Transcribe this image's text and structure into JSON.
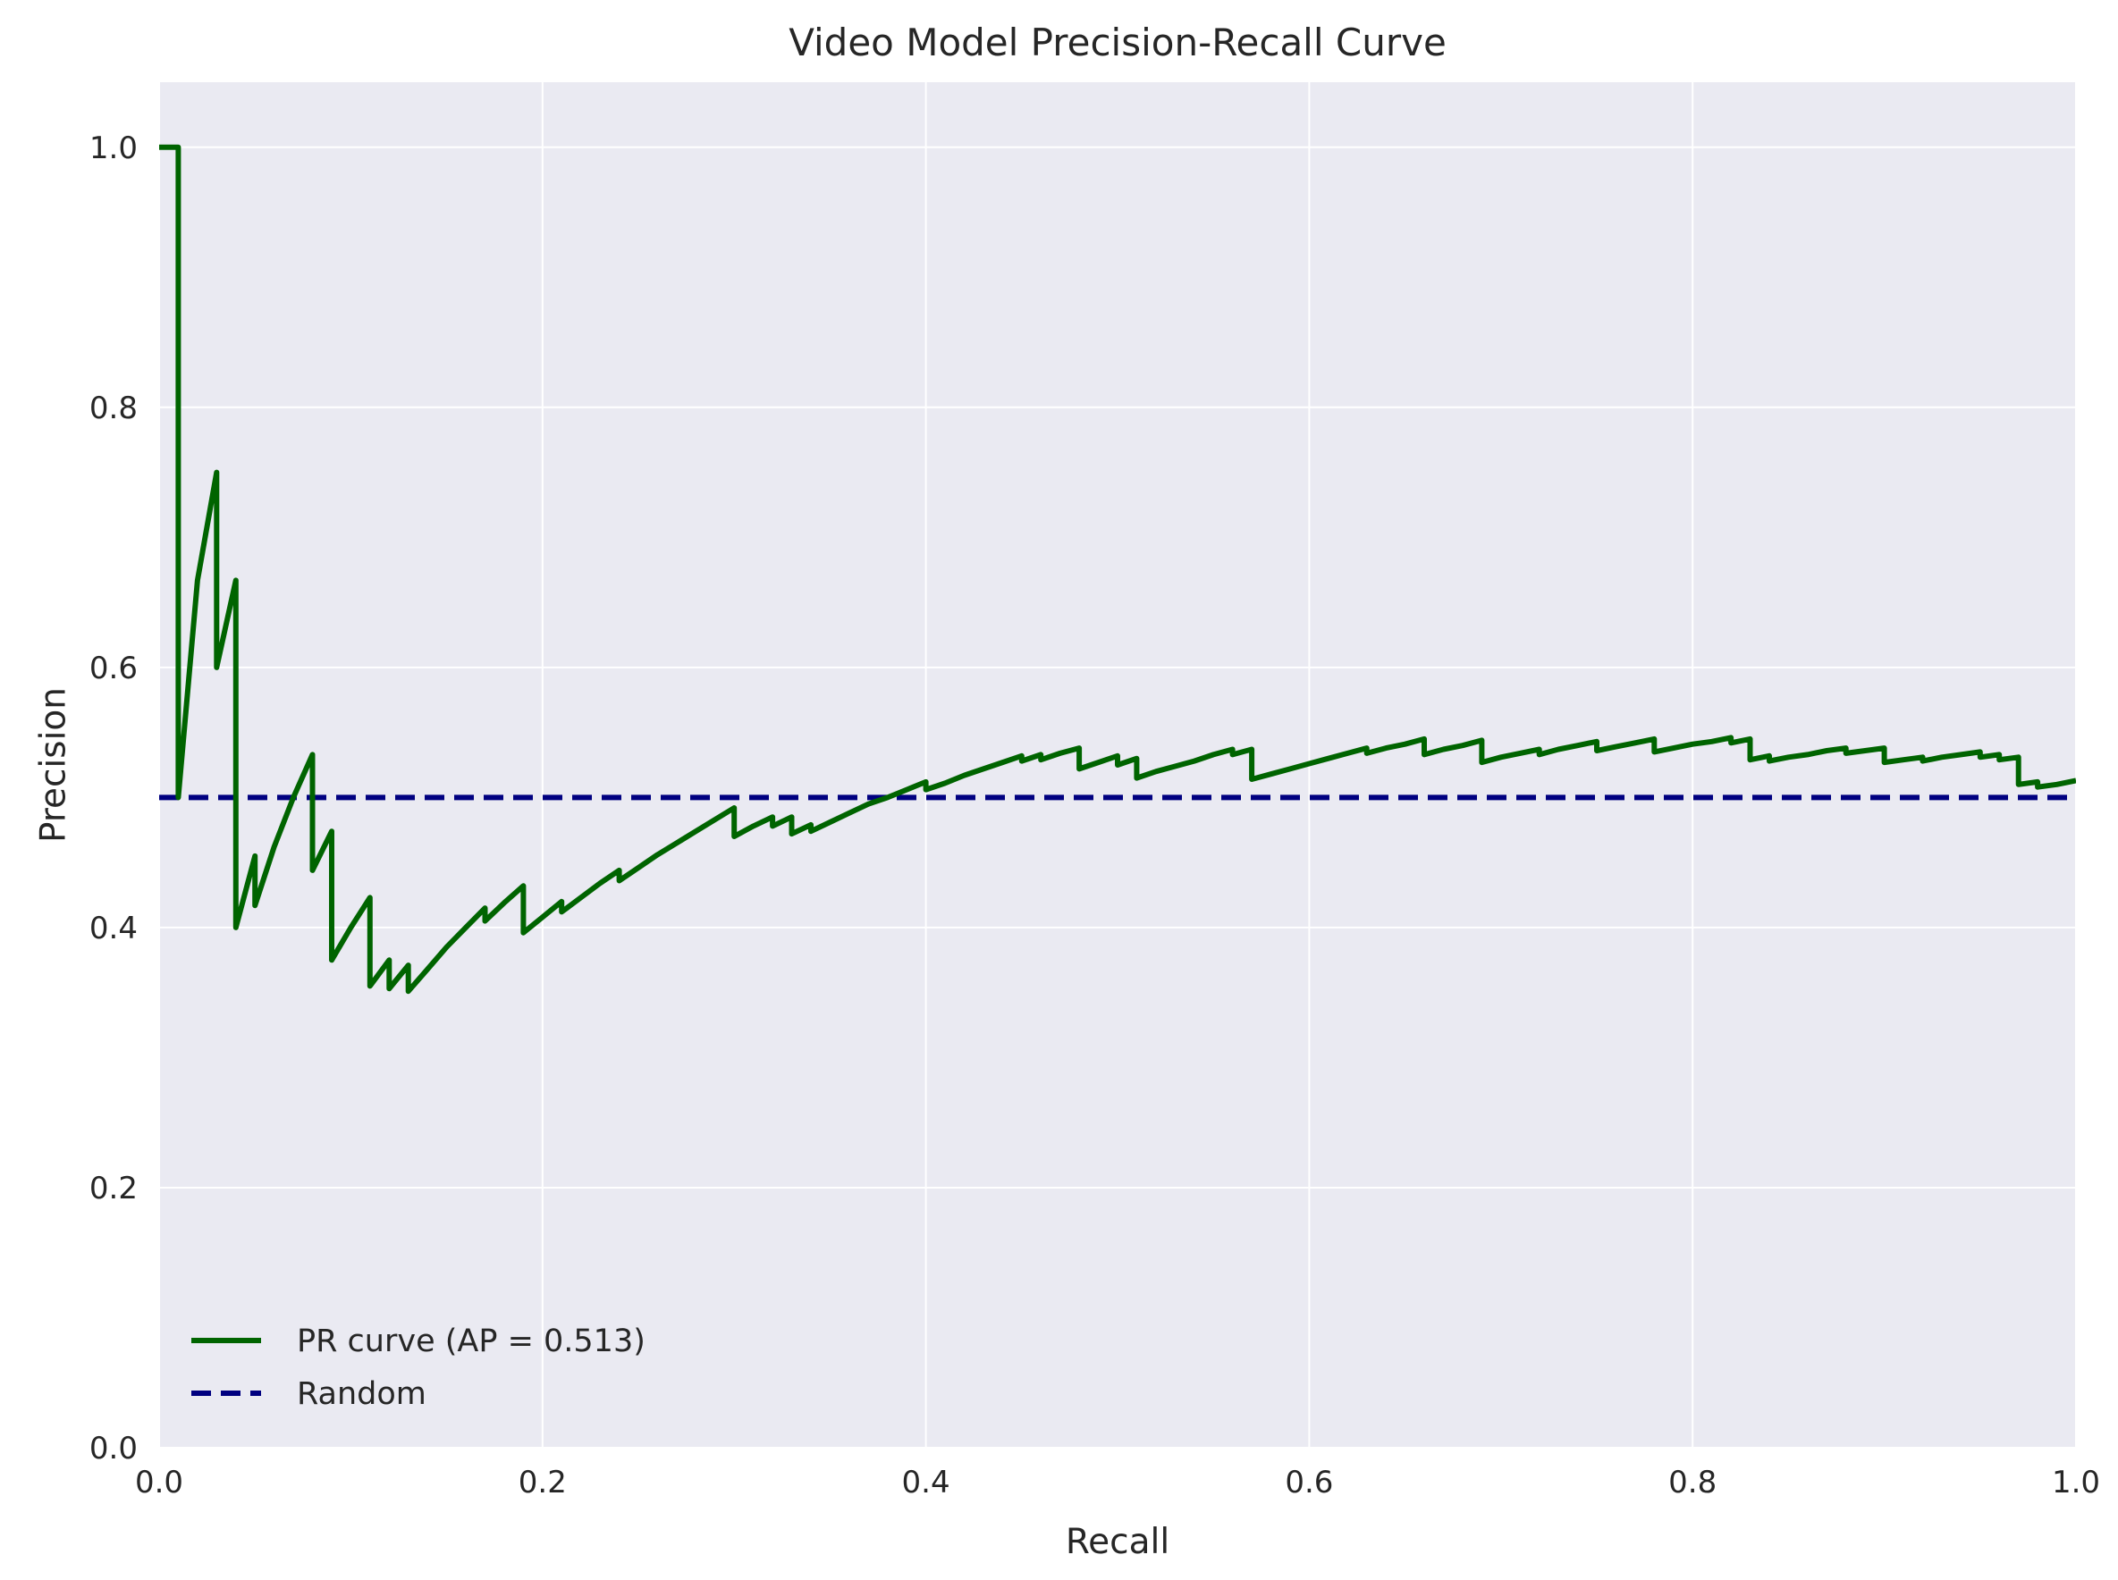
{
  "chart_data": {
    "type": "line",
    "title": "Video Model Precision-Recall Curve",
    "xlabel": "Recall",
    "ylabel": "Precision",
    "xlim": [
      0.0,
      1.0
    ],
    "ylim": [
      0.0,
      1.05
    ],
    "xticks": [
      0.0,
      0.2,
      0.4,
      0.6,
      0.8,
      1.0
    ],
    "xtick_labels": [
      "0.0",
      "0.2",
      "0.4",
      "0.6",
      "0.8",
      "1.0"
    ],
    "yticks": [
      0.0,
      0.2,
      0.4,
      0.6,
      0.8,
      1.0
    ],
    "ytick_labels": [
      "0.0",
      "0.2",
      "0.4",
      "0.6",
      "0.8",
      "1.0"
    ],
    "grid": true,
    "legend_position": "lower-left",
    "background_color": "#eaeaf2",
    "grid_color": "#ffffff",
    "series": [
      {
        "name": "PR curve (AP = 0.513)",
        "style": "solid",
        "color": "#006400",
        "x": [
          0.0,
          0.01,
          0.01,
          0.02,
          0.03,
          0.03,
          0.04,
          0.04,
          0.05,
          0.05,
          0.06,
          0.07,
          0.08,
          0.08,
          0.09,
          0.09,
          0.1,
          0.11,
          0.11,
          0.12,
          0.12,
          0.13,
          0.13,
          0.14,
          0.15,
          0.16,
          0.17,
          0.17,
          0.18,
          0.19,
          0.19,
          0.2,
          0.21,
          0.21,
          0.22,
          0.23,
          0.24,
          0.24,
          0.25,
          0.26,
          0.27,
          0.28,
          0.29,
          0.3,
          0.3,
          0.31,
          0.32,
          0.32,
          0.33,
          0.33,
          0.34,
          0.34,
          0.35,
          0.36,
          0.37,
          0.38,
          0.39,
          0.4,
          0.4,
          0.41,
          0.42,
          0.43,
          0.44,
          0.45,
          0.45,
          0.46,
          0.46,
          0.47,
          0.48,
          0.48,
          0.49,
          0.5,
          0.5,
          0.51,
          0.51,
          0.52,
          0.53,
          0.54,
          0.55,
          0.56,
          0.56,
          0.57,
          0.57,
          0.58,
          0.59,
          0.6,
          0.61,
          0.62,
          0.63,
          0.63,
          0.64,
          0.65,
          0.66,
          0.66,
          0.67,
          0.68,
          0.69,
          0.69,
          0.7,
          0.71,
          0.72,
          0.72,
          0.73,
          0.74,
          0.75,
          0.75,
          0.76,
          0.77,
          0.78,
          0.78,
          0.79,
          0.8,
          0.81,
          0.82,
          0.82,
          0.83,
          0.83,
          0.84,
          0.84,
          0.85,
          0.86,
          0.87,
          0.88,
          0.88,
          0.89,
          0.9,
          0.9,
          0.91,
          0.92,
          0.92,
          0.93,
          0.94,
          0.95,
          0.95,
          0.96,
          0.96,
          0.97,
          0.97,
          0.98,
          0.98,
          0.99,
          1.0
        ],
        "y": [
          1.0,
          1.0,
          0.5,
          0.667,
          0.75,
          0.6,
          0.667,
          0.4,
          0.455,
          0.417,
          0.462,
          0.5,
          0.533,
          0.444,
          0.474,
          0.375,
          0.4,
          0.423,
          0.355,
          0.375,
          0.353,
          0.371,
          0.351,
          0.368,
          0.385,
          0.4,
          0.415,
          0.405,
          0.419,
          0.432,
          0.396,
          0.408,
          0.42,
          0.412,
          0.423,
          0.434,
          0.444,
          0.436,
          0.446,
          0.456,
          0.465,
          0.474,
          0.483,
          0.492,
          0.47,
          0.478,
          0.485,
          0.478,
          0.485,
          0.472,
          0.479,
          0.474,
          0.481,
          0.488,
          0.495,
          0.5,
          0.506,
          0.512,
          0.506,
          0.511,
          0.517,
          0.522,
          0.527,
          0.532,
          0.528,
          0.533,
          0.529,
          0.534,
          0.538,
          0.522,
          0.527,
          0.532,
          0.525,
          0.53,
          0.515,
          0.52,
          0.524,
          0.528,
          0.533,
          0.537,
          0.533,
          0.537,
          0.514,
          0.518,
          0.522,
          0.526,
          0.53,
          0.534,
          0.538,
          0.534,
          0.538,
          0.541,
          0.545,
          0.533,
          0.537,
          0.54,
          0.544,
          0.527,
          0.531,
          0.534,
          0.537,
          0.533,
          0.537,
          0.54,
          0.543,
          0.536,
          0.539,
          0.542,
          0.545,
          0.535,
          0.538,
          0.541,
          0.543,
          0.546,
          0.542,
          0.545,
          0.529,
          0.532,
          0.528,
          0.531,
          0.533,
          0.536,
          0.538,
          0.534,
          0.536,
          0.538,
          0.527,
          0.529,
          0.531,
          0.528,
          0.531,
          0.533,
          0.535,
          0.531,
          0.533,
          0.529,
          0.531,
          0.51,
          0.512,
          0.508,
          0.51,
          0.513
        ]
      },
      {
        "name": "Random",
        "style": "dashed",
        "color": "#000080",
        "x": [
          0.0,
          1.0
        ],
        "y": [
          0.5,
          0.5
        ]
      }
    ]
  }
}
